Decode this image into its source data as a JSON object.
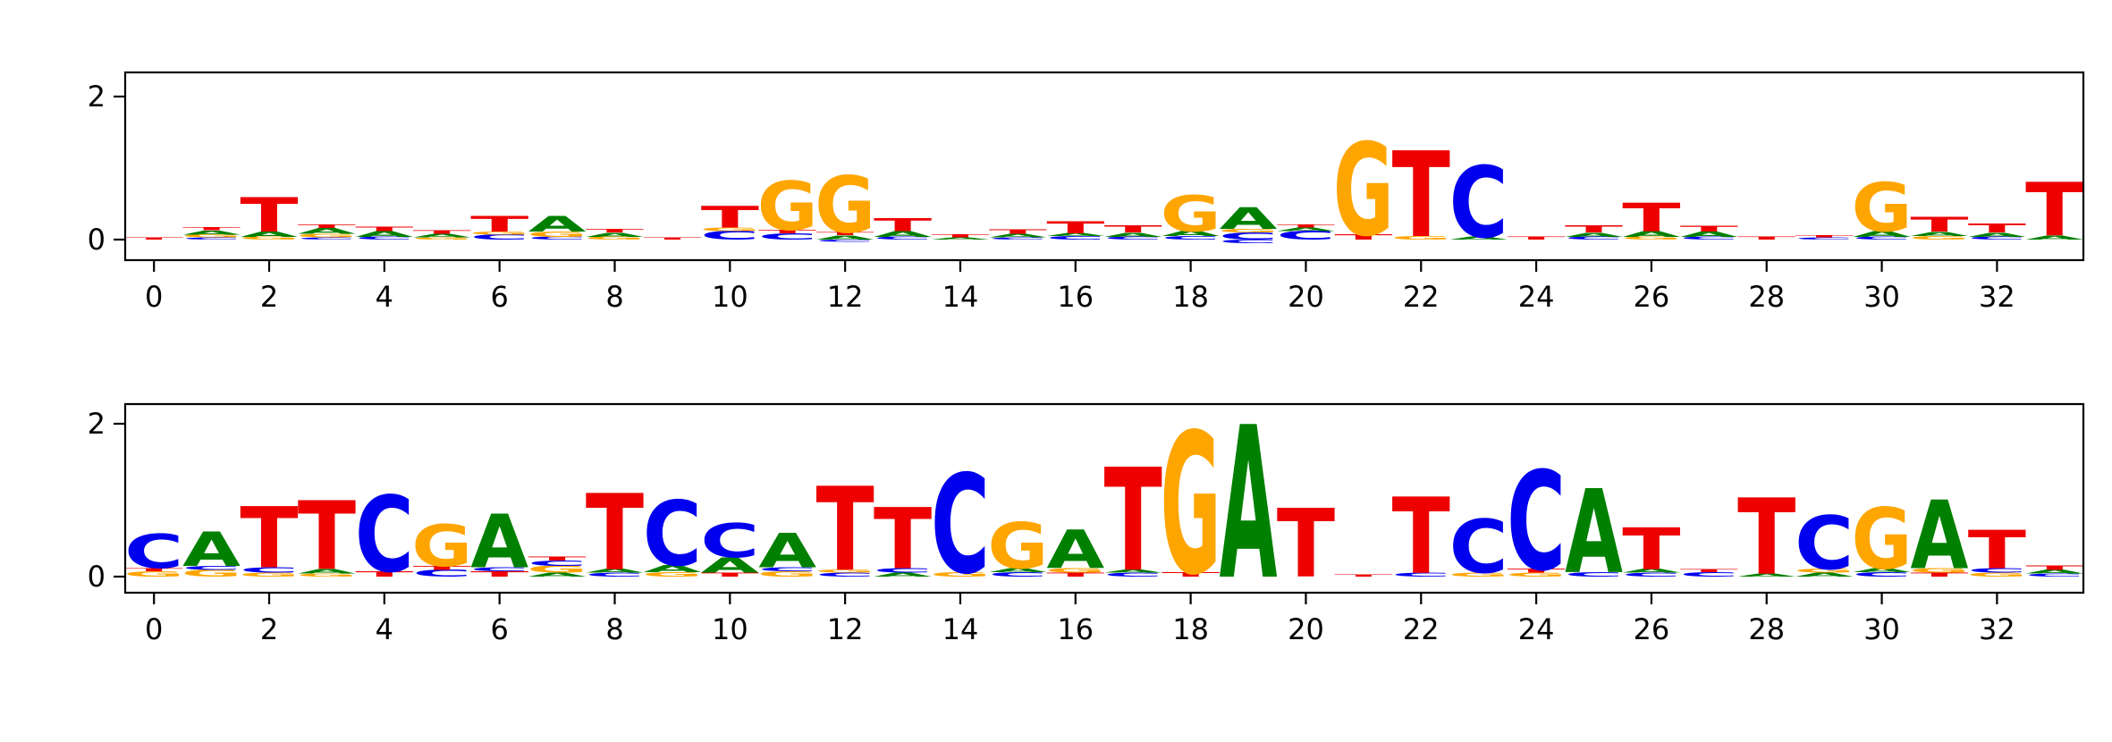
{
  "figure": {
    "background": "#ffffff",
    "n_panels": 2
  },
  "chart_data": [
    {
      "type": "sequence_logo",
      "panel": "top",
      "title": "",
      "xlabel": "",
      "ylabel": "",
      "xlim": [
        -0.5,
        33.5
      ],
      "ylim": [
        -0.3,
        2.35
      ],
      "xticks": [
        0,
        2,
        4,
        6,
        8,
        10,
        12,
        14,
        16,
        18,
        20,
        22,
        24,
        26,
        28,
        30,
        32
      ],
      "yticks": [
        0,
        2
      ],
      "colors": {
        "A": "#008000",
        "C": "#0000ee",
        "G": "#ffa500",
        "T": "#ee0000"
      },
      "stacks": [
        [
          [
            "T",
            0.035
          ]
        ],
        [
          [
            "C",
            0.03
          ],
          [
            "G",
            0.04
          ],
          [
            "A",
            0.06
          ],
          [
            "T",
            0.04
          ]
        ],
        [
          [
            "G",
            0.04
          ],
          [
            "A",
            0.07
          ],
          [
            "T",
            0.48
          ]
        ],
        [
          [
            "C",
            0.03
          ],
          [
            "G",
            0.05
          ],
          [
            "A",
            0.08
          ],
          [
            "T",
            0.05
          ]
        ],
        [
          [
            "C",
            0.04
          ],
          [
            "A",
            0.08
          ],
          [
            "T",
            0.06
          ]
        ],
        [
          [
            "G",
            0.03
          ],
          [
            "A",
            0.05
          ],
          [
            "T",
            0.05
          ]
        ],
        [
          [
            "C",
            0.07
          ],
          [
            "G",
            0.04
          ],
          [
            "T",
            0.22
          ]
        ],
        [
          [
            "C",
            0.04
          ],
          [
            "G",
            0.07
          ],
          [
            "A",
            0.22
          ]
        ],
        [
          [
            "G",
            0.04
          ],
          [
            "A",
            0.06
          ],
          [
            "T",
            0.05
          ]
        ],
        [
          [
            "T",
            0.03
          ]
        ],
        [
          [
            "C",
            0.12
          ],
          [
            "G",
            0.05
          ],
          [
            "T",
            0.3
          ]
        ],
        [
          [
            "C",
            0.09
          ],
          [
            "T",
            0.05
          ],
          [
            "G",
            0.68
          ]
        ],
        [
          [
            "C",
            -0.03
          ],
          [
            "A",
            0.06
          ],
          [
            "T",
            0.04
          ],
          [
            "G",
            0.8
          ]
        ],
        [
          [
            "C",
            0.04
          ],
          [
            "A",
            0.08
          ],
          [
            "T",
            0.18
          ]
        ],
        [
          [
            "A",
            0.03
          ],
          [
            "T",
            0.04
          ]
        ],
        [
          [
            "C",
            0.03
          ],
          [
            "A",
            0.05
          ],
          [
            "T",
            0.06
          ]
        ],
        [
          [
            "C",
            0.05
          ],
          [
            "A",
            0.04
          ],
          [
            "T",
            0.17
          ]
        ],
        [
          [
            "C",
            0.04
          ],
          [
            "A",
            0.06
          ],
          [
            "T",
            0.1
          ]
        ],
        [
          [
            "C",
            0.05
          ],
          [
            "A",
            0.07
          ],
          [
            "G",
            0.5
          ]
        ],
        [
          [
            "C",
            -0.05
          ],
          [
            "C",
            0.1
          ],
          [
            "G",
            0.05
          ],
          [
            "A",
            0.3
          ]
        ],
        [
          [
            "C",
            0.12
          ],
          [
            "A",
            0.05
          ],
          [
            "T",
            0.04
          ]
        ],
        [
          [
            "T",
            0.07
          ],
          [
            "G",
            1.3
          ]
        ],
        [
          [
            "G",
            0.05
          ],
          [
            "T",
            1.2
          ]
        ],
        [
          [
            "A",
            0.04
          ],
          [
            "C",
            1.0
          ]
        ],
        [
          [
            "T",
            0.04
          ]
        ],
        [
          [
            "C",
            0.04
          ],
          [
            "A",
            0.06
          ],
          [
            "T",
            0.1
          ]
        ],
        [
          [
            "G",
            0.04
          ],
          [
            "A",
            0.08
          ],
          [
            "T",
            0.4
          ]
        ],
        [
          [
            "C",
            0.04
          ],
          [
            "A",
            0.07
          ],
          [
            "T",
            0.08
          ]
        ],
        [
          [
            "T",
            0.04
          ]
        ],
        [
          [
            "C",
            0.03
          ],
          [
            "T",
            0.03
          ]
        ],
        [
          [
            "C",
            0.04
          ],
          [
            "A",
            0.08
          ],
          [
            "G",
            0.68
          ]
        ],
        [
          [
            "G",
            0.05
          ],
          [
            "A",
            0.06
          ],
          [
            "T",
            0.2
          ]
        ],
        [
          [
            "C",
            0.04
          ],
          [
            "A",
            0.06
          ],
          [
            "T",
            0.12
          ]
        ],
        [
          [
            "A",
            0.06
          ],
          [
            "T",
            0.75
          ]
        ]
      ]
    },
    {
      "type": "sequence_logo",
      "panel": "bottom",
      "title": "",
      "xlabel": "",
      "ylabel": "",
      "xlim": [
        -0.5,
        33.5
      ],
      "ylim": [
        -0.25,
        2.3
      ],
      "xticks": [
        0,
        2,
        4,
        6,
        8,
        10,
        12,
        14,
        16,
        18,
        20,
        22,
        24,
        26,
        28,
        30,
        32
      ],
      "yticks": [
        0,
        2
      ],
      "colors": {
        "A": "#008000",
        "C": "#0000ee",
        "G": "#ffa500",
        "T": "#ee0000"
      },
      "stacks": [
        [
          [
            "G",
            0.07
          ],
          [
            "T",
            0.04
          ],
          [
            "C",
            0.45
          ]
        ],
        [
          [
            "G",
            0.09
          ],
          [
            "C",
            0.05
          ],
          [
            "A",
            0.45
          ]
        ],
        [
          [
            "G",
            0.05
          ],
          [
            "C",
            0.07
          ],
          [
            "T",
            0.8
          ]
        ],
        [
          [
            "G",
            0.04
          ],
          [
            "A",
            0.06
          ],
          [
            "T",
            0.9
          ]
        ],
        [
          [
            "T",
            0.07
          ],
          [
            "C",
            1.0
          ]
        ],
        [
          [
            "C",
            0.09
          ],
          [
            "T",
            0.05
          ],
          [
            "G",
            0.55
          ]
        ],
        [
          [
            "T",
            0.07
          ],
          [
            "C",
            0.05
          ],
          [
            "A",
            0.7
          ]
        ],
        [
          [
            "A",
            0.05
          ],
          [
            "G",
            0.09
          ],
          [
            "C",
            0.07
          ],
          [
            "T",
            0.05
          ]
        ],
        [
          [
            "C",
            0.05
          ],
          [
            "A",
            0.05
          ],
          [
            "T",
            1.0
          ]
        ],
        [
          [
            "G",
            0.06
          ],
          [
            "A",
            0.09
          ],
          [
            "C",
            0.85
          ]
        ],
        [
          [
            "T",
            0.05
          ],
          [
            "A",
            0.2
          ],
          [
            "C",
            0.45
          ]
        ],
        [
          [
            "G",
            0.07
          ],
          [
            "C",
            0.05
          ],
          [
            "A",
            0.45
          ]
        ],
        [
          [
            "C",
            0.05
          ],
          [
            "G",
            0.04
          ],
          [
            "T",
            1.1
          ]
        ],
        [
          [
            "A",
            0.05
          ],
          [
            "C",
            0.06
          ],
          [
            "T",
            0.8
          ]
        ],
        [
          [
            "G",
            0.06
          ],
          [
            "C",
            1.3
          ]
        ],
        [
          [
            "C",
            0.06
          ],
          [
            "A",
            0.05
          ],
          [
            "G",
            0.6
          ]
        ],
        [
          [
            "T",
            0.05
          ],
          [
            "G",
            0.06
          ],
          [
            "A",
            0.5
          ]
        ],
        [
          [
            "C",
            0.05
          ],
          [
            "A",
            0.04
          ],
          [
            "T",
            1.35
          ]
        ],
        [
          [
            "T",
            0.06
          ],
          [
            "G",
            1.85
          ]
        ],
        [
          [
            "A",
            2.0
          ]
        ],
        [
          [
            "T",
            0.9
          ]
        ],
        [
          [
            "T",
            0.03
          ]
        ],
        [
          [
            "C",
            0.05
          ],
          [
            "T",
            1.0
          ]
        ],
        [
          [
            "G",
            0.05
          ],
          [
            "C",
            0.7
          ]
        ],
        [
          [
            "G",
            0.05
          ],
          [
            "T",
            0.05
          ],
          [
            "C",
            1.3
          ]
        ],
        [
          [
            "C",
            0.06
          ],
          [
            "A",
            1.1
          ]
        ],
        [
          [
            "C",
            0.05
          ],
          [
            "A",
            0.05
          ],
          [
            "T",
            0.55
          ]
        ],
        [
          [
            "C",
            0.06
          ],
          [
            "T",
            0.04
          ]
        ],
        [
          [
            "A",
            0.04
          ],
          [
            "T",
            1.0
          ]
        ],
        [
          [
            "A",
            0.05
          ],
          [
            "G",
            0.05
          ],
          [
            "C",
            0.7
          ]
        ],
        [
          [
            "C",
            0.06
          ],
          [
            "A",
            0.05
          ],
          [
            "G",
            0.8
          ]
        ],
        [
          [
            "T",
            0.05
          ],
          [
            "G",
            0.06
          ],
          [
            "A",
            0.9
          ]
        ],
        [
          [
            "G",
            0.05
          ],
          [
            "C",
            0.06
          ],
          [
            "T",
            0.5
          ]
        ],
        [
          [
            "C",
            0.04
          ],
          [
            "A",
            0.05
          ],
          [
            "T",
            0.06
          ]
        ]
      ]
    }
  ]
}
